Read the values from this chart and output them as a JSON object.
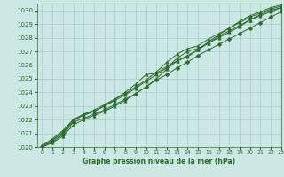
{
  "title": "Graphe pression niveau de la mer (hPa)",
  "bg_color": "#cce8e4",
  "grid_color": "#aacccc",
  "line_color": "#2d6a2d",
  "xlim": [
    -0.5,
    23
  ],
  "ylim": [
    1020,
    1030.5
  ],
  "yticks": [
    1020,
    1021,
    1022,
    1023,
    1024,
    1025,
    1026,
    1027,
    1028,
    1029,
    1030
  ],
  "xticks": [
    0,
    1,
    2,
    3,
    4,
    5,
    6,
    7,
    8,
    9,
    10,
    11,
    12,
    13,
    14,
    15,
    16,
    17,
    18,
    19,
    20,
    21,
    22,
    23
  ],
  "series": [
    {
      "y": [
        1020.0,
        1020.4,
        1020.9,
        1021.8,
        1022.1,
        1022.4,
        1022.7,
        1023.1,
        1023.5,
        1023.9,
        1024.4,
        1024.9,
        1025.3,
        1025.8,
        1026.2,
        1026.7,
        1027.1,
        1027.5,
        1027.9,
        1028.3,
        1028.7,
        1029.1,
        1029.5,
        1029.9
      ],
      "marker": "D",
      "markersize": 2.5
    },
    {
      "y": [
        1020.0,
        1020.5,
        1021.1,
        1022.0,
        1022.3,
        1022.6,
        1023.0,
        1023.4,
        1023.8,
        1024.3,
        1024.8,
        1025.3,
        1025.8,
        1026.5,
        1027.0,
        1027.2,
        1027.6,
        1028.1,
        1028.5,
        1028.9,
        1029.3,
        1029.6,
        1029.9,
        1030.2
      ],
      "marker": "^",
      "markersize": 2.5
    },
    {
      "y": [
        1020.1,
        1020.6,
        1021.2,
        1022.0,
        1022.4,
        1022.7,
        1023.1,
        1023.5,
        1023.9,
        1024.4,
        1024.9,
        1025.5,
        1026.2,
        1026.8,
        1027.2,
        1027.4,
        1027.9,
        1028.3,
        1028.7,
        1029.1,
        1029.5,
        1029.8,
        1030.1,
        1030.3
      ],
      "marker": "^",
      "markersize": 2.5
    },
    {
      "y": [
        1020.0,
        1020.3,
        1020.8,
        1021.6,
        1022.0,
        1022.3,
        1022.6,
        1023.0,
        1023.4,
        1023.9,
        1024.4,
        1025.0,
        1025.7,
        1026.3,
        1026.7,
        1027.1,
        1027.6,
        1028.0,
        1028.4,
        1028.8,
        1029.3,
        1029.7,
        1030.0,
        1030.2
      ],
      "marker": "^",
      "markersize": 2.5
    },
    {
      "y": [
        1020.0,
        1020.5,
        1021.0,
        1021.9,
        1022.4,
        1022.6,
        1023.0,
        1023.5,
        1024.0,
        1024.6,
        1025.3,
        1025.4,
        1025.9,
        1026.3,
        1026.6,
        1027.1,
        1027.7,
        1028.2,
        1028.7,
        1029.2,
        1029.6,
        1029.9,
        1030.2,
        1030.4
      ],
      "marker": "^",
      "markersize": 2.5
    }
  ]
}
